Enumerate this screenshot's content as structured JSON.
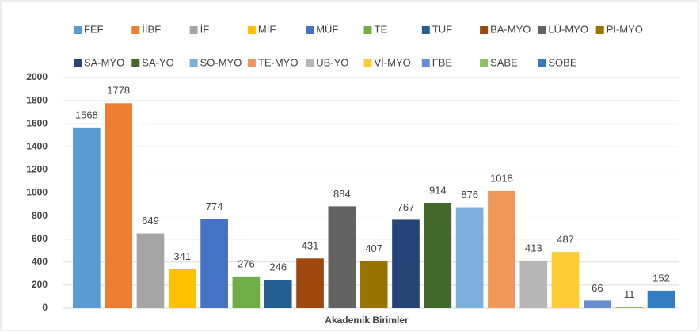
{
  "chart_data": {
    "type": "bar",
    "x_label": "Akademik Birimler",
    "categories": [
      "Akademik Birimler"
    ],
    "ylim": [
      0,
      2000
    ],
    "yticks": [
      0,
      200,
      400,
      600,
      800,
      1000,
      1200,
      1400,
      1600,
      1800,
      2000
    ],
    "grid": true,
    "series": [
      {
        "name": "FEF",
        "color": "#5b9bd5",
        "values": [
          1568
        ]
      },
      {
        "name": "İİBF",
        "color": "#ed7d31",
        "values": [
          1778
        ]
      },
      {
        "name": "İF",
        "color": "#a5a5a5",
        "values": [
          649
        ]
      },
      {
        "name": "MİF",
        "color": "#ffc000",
        "values": [
          341
        ]
      },
      {
        "name": "MÜF",
        "color": "#4472c4",
        "values": [
          774
        ]
      },
      {
        "name": "TE",
        "color": "#70ad47",
        "values": [
          276
        ]
      },
      {
        "name": "TUF",
        "color": "#255e91",
        "values": [
          246
        ]
      },
      {
        "name": "BA-MYO",
        "color": "#9e480e",
        "values": [
          431
        ]
      },
      {
        "name": "LÜ-MYO",
        "color": "#636363",
        "values": [
          884
        ]
      },
      {
        "name": "PI-MYO",
        "color": "#997300",
        "values": [
          407
        ]
      },
      {
        "name": "SA-MYO",
        "color": "#264478",
        "values": [
          767
        ]
      },
      {
        "name": "SA-YO",
        "color": "#43682b",
        "values": [
          914
        ]
      },
      {
        "name": "SO-MYO",
        "color": "#7cafdd",
        "values": [
          876
        ]
      },
      {
        "name": "TE-MYO",
        "color": "#f1975a",
        "values": [
          1018
        ]
      },
      {
        "name": "UB-YO",
        "color": "#b7b7b7",
        "values": [
          413
        ]
      },
      {
        "name": "Vİ-MYO",
        "color": "#ffcd33",
        "values": [
          487
        ]
      },
      {
        "name": "FBE",
        "color": "#698ed0",
        "values": [
          66
        ]
      },
      {
        "name": "SABE",
        "color": "#8cc168",
        "values": [
          11
        ]
      },
      {
        "name": "SOBE",
        "color": "#327dc2",
        "values": [
          152
        ]
      }
    ]
  }
}
